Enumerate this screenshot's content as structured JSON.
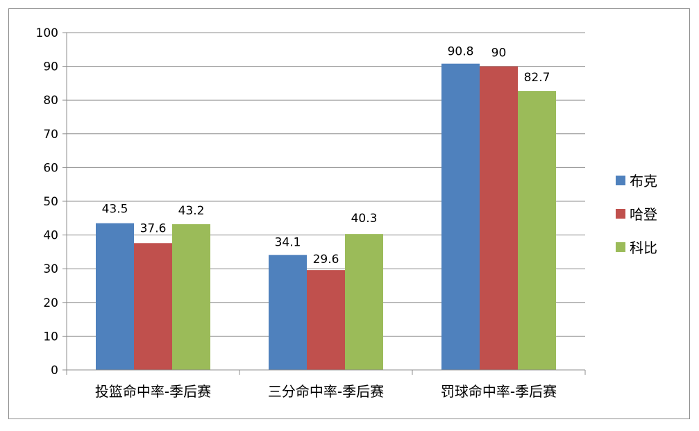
{
  "chart_data": {
    "type": "bar",
    "categories": [
      "投篮命中率-季后赛",
      "三分命中率-季后赛",
      "罚球命中率-季后赛"
    ],
    "series": [
      {
        "name": "布克",
        "values": [
          43.5,
          34.1,
          90.8
        ],
        "color": "#4f81bd"
      },
      {
        "name": "哈登",
        "values": [
          37.6,
          29.6,
          90
        ],
        "color": "#c0504d"
      },
      {
        "name": "科比",
        "values": [
          43.2,
          40.3,
          82.7
        ],
        "color": "#9bbb59"
      }
    ],
    "ylim": [
      0,
      100
    ],
    "yticks": [
      "0",
      "10",
      "20",
      "30",
      "40",
      "50",
      "60",
      "70",
      "80",
      "90",
      "100"
    ],
    "grid": true,
    "legend_position": "right"
  }
}
